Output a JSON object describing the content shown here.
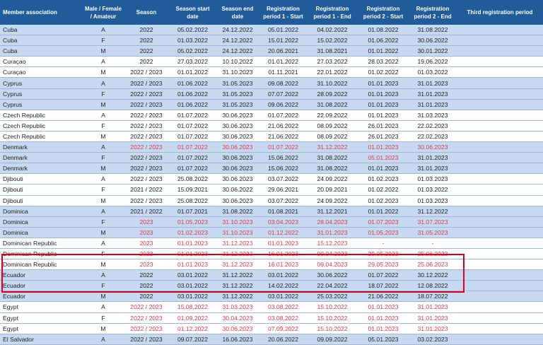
{
  "headers": [
    "Member association",
    "Male / Female / Amateur",
    "Season",
    "Season start date",
    "Season end date",
    "Registration period 1 - Start",
    "Registration period 1 - End",
    "Registration period 2 - Start",
    "Registration period 2 - End",
    "Third registration period"
  ],
  "colors": {
    "header": "#1f5c99",
    "band": "#c6d9f0",
    "red_text": "#d9354e",
    "highlight": "#d0021b"
  },
  "rows": [
    {
      "band": "blue",
      "cells": [
        "Cuba",
        "A",
        "2022",
        "05.02.2022",
        "24.12.2022",
        "05.01.2022",
        "04.02.2022",
        "01.08.2022",
        "31.08.2022",
        ""
      ],
      "red": []
    },
    {
      "band": "blue",
      "cells": [
        "Cuba",
        "F",
        "2022",
        "01.03.2022",
        "24.12.2022",
        "15.01.2022",
        "15.02.2022",
        "01.06.2022",
        "30.06.2022",
        ""
      ],
      "red": []
    },
    {
      "band": "blue",
      "cells": [
        "Cuba",
        "M",
        "2022",
        "05.02.2022",
        "24.12.2022",
        "20.06.2021",
        "31.08.2021",
        "01.01.2022",
        "30.01.2022",
        ""
      ],
      "red": []
    },
    {
      "band": "white",
      "cells": [
        "Curaçao",
        "A",
        "2022",
        "27.03.2022",
        "10.10.2022",
        "01.01.2022",
        "27.03.2022",
        "28.03.2022",
        "19.06.2022",
        ""
      ],
      "red": []
    },
    {
      "band": "white",
      "cells": [
        "Curaçao",
        "M",
        "2022 / 2023",
        "01.01.2022",
        "31.10.2023",
        "01.11.2021",
        "22.01.2022",
        "01.02.2022",
        "01.03.2022",
        ""
      ],
      "red": []
    },
    {
      "band": "blue",
      "cells": [
        "Cyprus",
        "A",
        "2022 / 2023",
        "01.06.2022",
        "31.05.2023",
        "09.08.2022",
        "31.10.2022",
        "01.01.2023",
        "31.01.2023",
        ""
      ],
      "red": []
    },
    {
      "band": "blue",
      "cells": [
        "Cyprus",
        "F",
        "2022 / 2023",
        "01.06.2022",
        "31.05.2023",
        "07.07.2022",
        "28.09.2022",
        "01.01.2023",
        "31.01.2023",
        ""
      ],
      "red": []
    },
    {
      "band": "blue",
      "cells": [
        "Cyprus",
        "M",
        "2022 / 2023",
        "01.06.2022",
        "31.05.2023",
        "09.06.2022",
        "31.08.2022",
        "01.01.2023",
        "31.01.2023",
        ""
      ],
      "red": []
    },
    {
      "band": "white",
      "cells": [
        "Czech Republic",
        "A",
        "2022 / 2023",
        "01.07.2022",
        "30.06.2023",
        "01.07.2022",
        "22.09.2022",
        "01.01.2023",
        "31.03.2023",
        ""
      ],
      "red": []
    },
    {
      "band": "white",
      "cells": [
        "Czech Republic",
        "F",
        "2022 / 2023",
        "01.07.2022",
        "30.06.2023",
        "21.06.2022",
        "08.09.2022",
        "26.01.2023",
        "22.02.2023",
        ""
      ],
      "red": []
    },
    {
      "band": "white",
      "cells": [
        "Czech Republic",
        "M",
        "2022 / 2023",
        "01.07.2022",
        "30.06.2023",
        "21.06.2022",
        "08.09.2022",
        "26.01.2023",
        "22.02.2023",
        ""
      ],
      "red": []
    },
    {
      "band": "blue",
      "cells": [
        "Denmark",
        "A",
        "2022 / 2023",
        "01.07.2022",
        "30.06.2023",
        "01.07.2022",
        "31.12.2022",
        "01.01.2023",
        "30.06.2023",
        ""
      ],
      "red": [
        2,
        3,
        4,
        5,
        6,
        7,
        8
      ]
    },
    {
      "band": "blue",
      "cells": [
        "Denmark",
        "F",
        "2022 / 2023",
        "01.07.2022",
        "30.06.2023",
        "15.06.2022",
        "31.08.2022",
        "05.01.2023",
        "31.01.2023",
        ""
      ],
      "red": [
        7
      ]
    },
    {
      "band": "blue",
      "cells": [
        "Denmark",
        "M",
        "2022 / 2023",
        "01.07.2022",
        "30.06.2023",
        "15.06.2022",
        "31.08.2022",
        "01.01.2023",
        "31.01.2023",
        ""
      ],
      "red": []
    },
    {
      "band": "white",
      "cells": [
        "Djibouti",
        "A",
        "2022 / 2023",
        "25.08.2022",
        "30.06.2023",
        "03.07.2022",
        "24.09.2022",
        "01.02.2023",
        "01.03.2023",
        ""
      ],
      "red": []
    },
    {
      "band": "white",
      "cells": [
        "Djibouti",
        "F",
        "2021 / 2022",
        "15.09.2021",
        "30.06.2022",
        "29.06.2021",
        "20.09.2021",
        "01.02.2022",
        "01.03.2022",
        ""
      ],
      "red": []
    },
    {
      "band": "white",
      "cells": [
        "Djibouti",
        "M",
        "2022 / 2023",
        "25.08.2022",
        "30.06.2023",
        "03.07.2022",
        "24.09.2022",
        "01.02.2023",
        "01.03.2023",
        ""
      ],
      "red": []
    },
    {
      "band": "blue",
      "cells": [
        "Dominica",
        "A",
        "2021 / 2022",
        "01.07.2021",
        "31.08.2022",
        "01.08.2021",
        "31.12.2021",
        "01.01.2022",
        "31.12.2022",
        ""
      ],
      "red": []
    },
    {
      "band": "blue",
      "cells": [
        "Dominica",
        "F",
        "2023",
        "01.05.2023",
        "31.10.2023",
        "03.04.2023",
        "28.04.2023",
        "01.07.2023",
        "31.07.2023",
        ""
      ],
      "red": [
        2,
        3,
        4,
        5,
        6,
        7,
        8
      ]
    },
    {
      "band": "blue",
      "cells": [
        "Dominica",
        "M",
        "2023",
        "01.02.2023",
        "31.10.2023",
        "01.12.2022",
        "31.01.2023",
        "01.05.2023",
        "31.05.2023",
        ""
      ],
      "red": [
        2,
        3,
        4,
        5,
        6,
        7,
        8
      ]
    },
    {
      "band": "white",
      "cells": [
        "Dominican Republic",
        "A",
        "2023",
        "01.01.2023",
        "31.12.2023",
        "01.01.2023",
        "15.12.2023",
        "-",
        "-",
        ""
      ],
      "red": [
        2,
        3,
        4,
        5,
        6,
        7,
        8
      ]
    },
    {
      "band": "white",
      "cells": [
        "Dominican Republic",
        "F",
        "2023",
        "01.01.2023",
        "31.12.2023",
        "16.01.2023",
        "09.04.2023",
        "29.05.2023",
        "25.06.2023",
        ""
      ],
      "red": [
        2,
        3,
        4,
        5,
        6,
        7,
        8
      ]
    },
    {
      "band": "white",
      "cells": [
        "Dominican Republic",
        "M",
        "2023",
        "01.01.2023",
        "31.12.2023",
        "16.01.2023",
        "09.04.2023",
        "29.05.2023",
        "25.06.2023",
        ""
      ],
      "red": [
        2,
        3,
        4,
        5,
        6,
        7,
        8
      ]
    },
    {
      "band": "blue",
      "cells": [
        "Ecuador",
        "A",
        "2022",
        "03.01.2022",
        "31.12.2022",
        "03.01.2022",
        "30.06.2022",
        "01.07.2022",
        "30.12.2022",
        ""
      ],
      "red": []
    },
    {
      "band": "blue",
      "cells": [
        "Ecuador",
        "F",
        "2022",
        "03.01.2022",
        "31.12.2022",
        "14.02.2022",
        "22.04.2022",
        "18.07.2022",
        "12.08.2022",
        ""
      ],
      "red": []
    },
    {
      "band": "blue",
      "cells": [
        "Ecuador",
        "M",
        "2022",
        "03.01.2022",
        "31.12.2022",
        "03.01.2022",
        "25.03.2022",
        "21.06.2022",
        "18.07.2022",
        ""
      ],
      "red": []
    },
    {
      "band": "white",
      "cells": [
        "Egypt",
        "A",
        "2022 / 2023",
        "15.08.2022",
        "31.03.2023",
        "03.08.2022",
        "15.10.2022",
        "01.01.2023",
        "31.01.2023",
        ""
      ],
      "red": [
        2,
        3,
        4,
        5,
        6,
        7,
        8
      ]
    },
    {
      "band": "white",
      "cells": [
        "Egypt",
        "F",
        "2022 / 2023",
        "01.09.2022",
        "30.04.2023",
        "03.08.2022",
        "15.10.2022",
        "01.01.2023",
        "31.01.2023",
        ""
      ],
      "red": [
        2,
        3,
        4,
        5,
        6,
        7,
        8
      ]
    },
    {
      "band": "white",
      "cells": [
        "Egypt",
        "M",
        "2022 / 2023",
        "01.12.2022",
        "30.06.2023",
        "07.09.2022",
        "15.10.2022",
        "01.01.2023",
        "31.01.2023",
        ""
      ],
      "red": [
        2,
        3,
        4,
        5,
        6,
        7,
        8
      ]
    },
    {
      "band": "blue",
      "cells": [
        "El Salvador",
        "A",
        "2022 / 2023",
        "09.07.2022",
        "16.06.2023",
        "20.06.2022",
        "09.09.2022",
        "05.01.2023",
        "03.02.2023",
        ""
      ],
      "red": []
    }
  ]
}
